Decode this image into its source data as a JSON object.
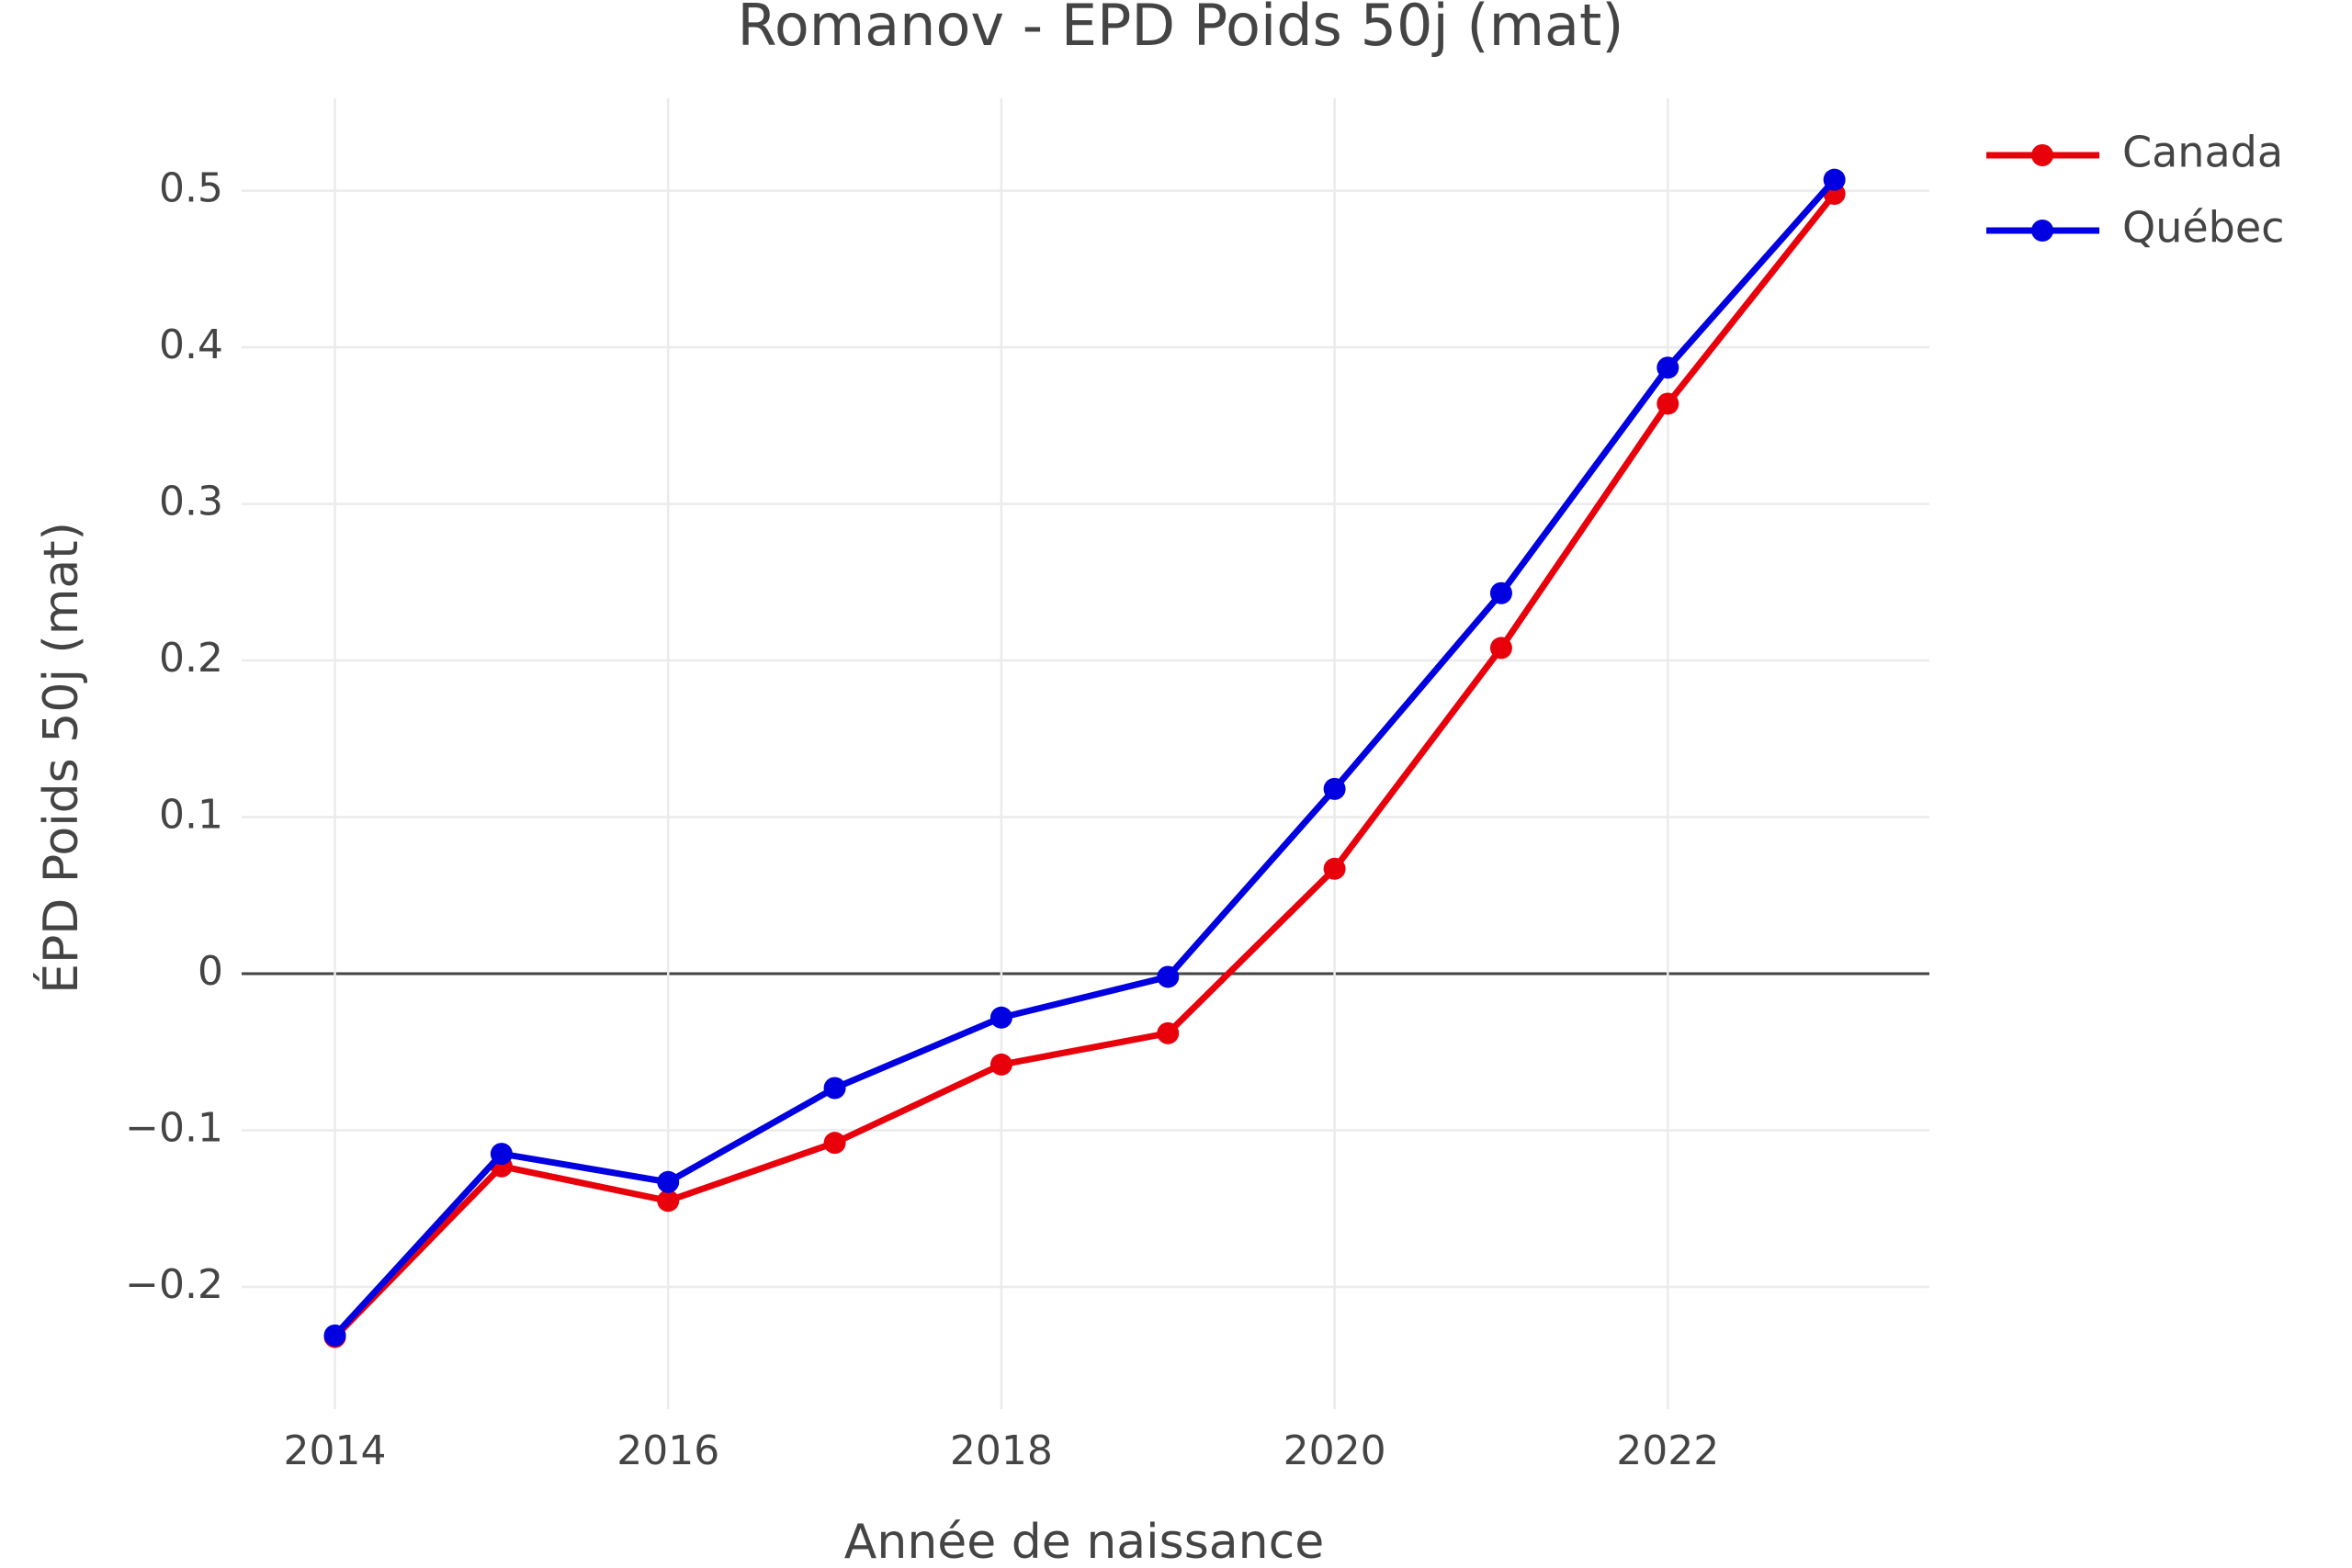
{
  "chart_data": {
    "type": "line",
    "title": "Romanov - ÉPD Poids 50j (mat)",
    "x_label": "Année de naissance",
    "y_label": "ÉPD Poids 50j (mat)",
    "x": [
      2014,
      2015,
      2016,
      2017,
      2018,
      2019,
      2020,
      2021,
      2022,
      2023
    ],
    "series": [
      {
        "name": "Canada",
        "color": "#e8000b",
        "values": [
          -0.232,
          -0.123,
          -0.145,
          -0.108,
          -0.058,
          -0.038,
          0.067,
          0.208,
          0.364,
          0.498
        ]
      },
      {
        "name": "Québec",
        "color": "#0000e0",
        "values": [
          -0.231,
          -0.115,
          -0.133,
          -0.073,
          -0.028,
          -0.002,
          0.118,
          0.243,
          0.387,
          0.507
        ]
      }
    ],
    "xlim": [
      2013.44,
      2023.57
    ],
    "xticks": [
      2014,
      2016,
      2018,
      2020,
      2022
    ],
    "ylim": [
      -0.278,
      0.559
    ],
    "yticks": [
      {
        "value": -0.2,
        "label": "−0.2"
      },
      {
        "value": -0.1,
        "label": "−0.1"
      },
      0,
      0.1,
      0.2,
      0.3,
      0.4,
      0.5
    ],
    "grid": true,
    "legend": "right"
  }
}
